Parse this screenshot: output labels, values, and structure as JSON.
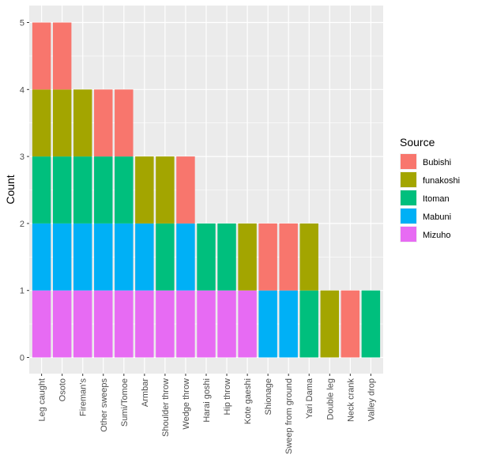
{
  "chart_data": {
    "type": "bar",
    "stacked": true,
    "title": "",
    "xlabel": "",
    "ylabel": "Count",
    "ylim": [
      0,
      5
    ],
    "yticks": [
      0,
      1,
      2,
      3,
      4,
      5
    ],
    "grid": true,
    "legend_title": "Source",
    "legend_position": "right",
    "categories": [
      "Leg caught",
      "Osoto",
      "Fireman's",
      "Other sweeps",
      "Sumi/Tomoe",
      "Armbar",
      "Shoulder throw",
      "Wedge throw",
      "Harai goshi",
      "Hip throw",
      "Kote gaeshi",
      "Shionage",
      "Sweep from ground",
      "Yari Dama",
      "Double leg",
      "Neck crank",
      "Valley drop"
    ],
    "series": [
      {
        "name": "Bubishi",
        "color": "#F8766D",
        "values": [
          1,
          1,
          0,
          1,
          1,
          0,
          0,
          1,
          0,
          0,
          0,
          1,
          1,
          0,
          0,
          1,
          0
        ]
      },
      {
        "name": "funakoshi",
        "color": "#A3A500",
        "values": [
          1,
          1,
          1,
          0,
          0,
          1,
          1,
          0,
          0,
          0,
          1,
          0,
          0,
          1,
          1,
          0,
          0
        ]
      },
      {
        "name": "Itoman",
        "color": "#00BF7D",
        "values": [
          1,
          1,
          1,
          1,
          1,
          0,
          1,
          0,
          1,
          1,
          0,
          0,
          0,
          1,
          0,
          0,
          1
        ]
      },
      {
        "name": "Mabuni",
        "color": "#00B0F6",
        "values": [
          1,
          1,
          1,
          1,
          1,
          1,
          0,
          1,
          0,
          0,
          0,
          1,
          1,
          0,
          0,
          0,
          0
        ]
      },
      {
        "name": "Mizuho",
        "color": "#E76BF3",
        "values": [
          1,
          1,
          1,
          1,
          1,
          1,
          1,
          1,
          1,
          1,
          1,
          0,
          0,
          0,
          0,
          0,
          0
        ]
      }
    ]
  }
}
